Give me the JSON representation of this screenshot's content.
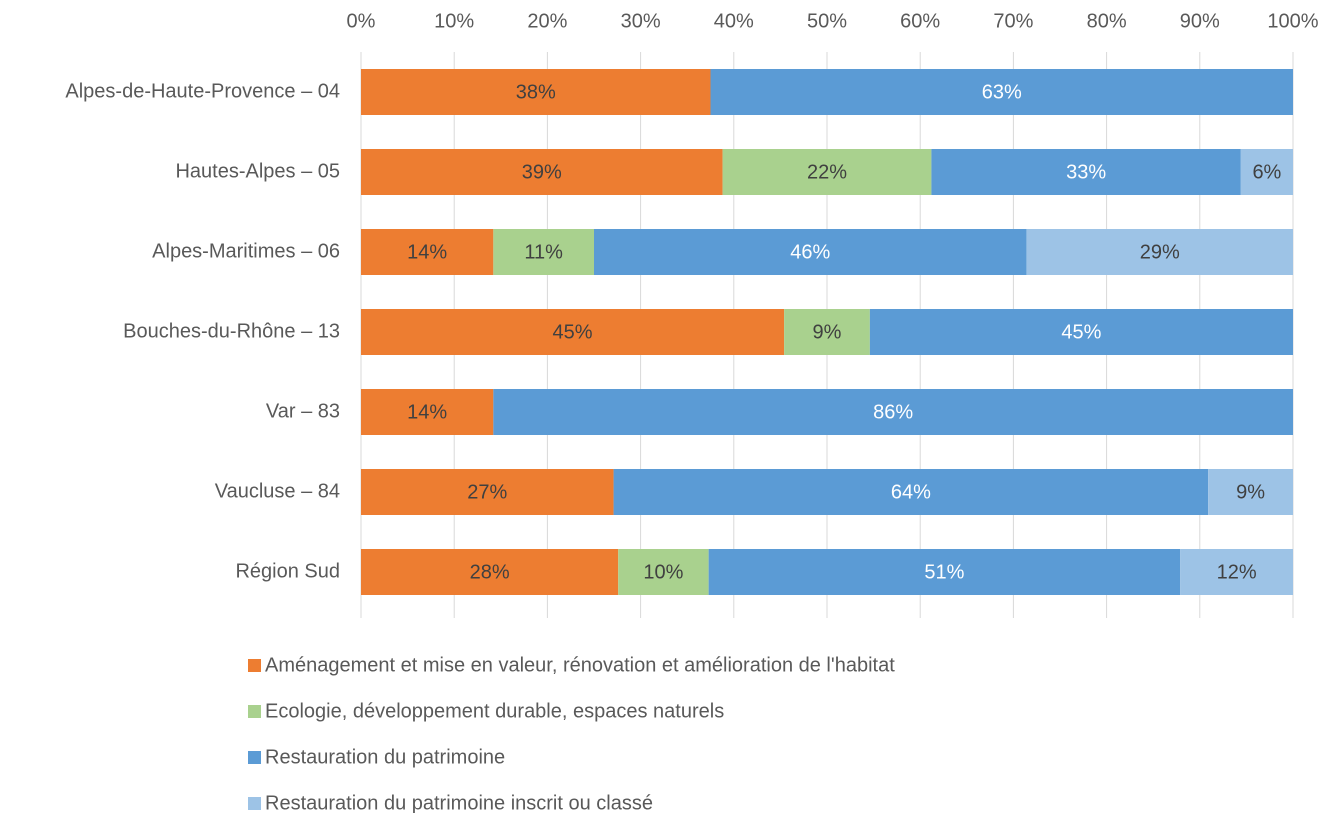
{
  "chart_data": {
    "type": "stacked_barh",
    "categories": [
      "Alpes-de-Haute-Provence – 04",
      "Hautes-Alpes – 05",
      "Alpes-Maritimes – 06",
      "Bouches-du-Rhône – 13",
      "Var – 83",
      "Vaucluse – 84",
      "Région Sud"
    ],
    "series": [
      {
        "name": "Aménagement et mise en valeur, rénovation et amélioration de l'habitat",
        "color": "#ed7d31",
        "label_color": "#404040",
        "values": [
          37.5,
          38.8,
          14.2,
          45.4,
          14.2,
          27.1,
          27.6
        ],
        "value_labels": [
          "38%",
          "39%",
          "14%",
          "45%",
          "14%",
          "27%",
          "28%"
        ]
      },
      {
        "name": "Ecologie, développement durable, espaces naturels",
        "color": "#a9d18e",
        "label_color": "#404040",
        "values": [
          null,
          22.4,
          10.8,
          9.2,
          null,
          null,
          9.7
        ],
        "value_labels": [
          null,
          "22%",
          "11%",
          "9%",
          null,
          null,
          "10%"
        ]
      },
      {
        "name": "Restauration du patrimoine",
        "color": "#5b9bd5",
        "label_color": "#ffffff",
        "values": [
          62.5,
          33.2,
          46.4,
          45.4,
          85.8,
          63.8,
          50.6
        ],
        "value_labels": [
          "63%",
          "33%",
          "46%",
          "45%",
          "86%",
          "64%",
          "51%"
        ]
      },
      {
        "name": "Restauration du patrimoine inscrit ou classé",
        "color": "#9dc3e6",
        "label_color": "#404040",
        "values": [
          null,
          5.6,
          28.6,
          null,
          null,
          9.1,
          12.1
        ],
        "value_labels": [
          null,
          "6%",
          "29%",
          null,
          null,
          "9%",
          "12%"
        ]
      }
    ],
    "xlim": [
      0,
      100
    ],
    "xticks": [
      {
        "value": 0,
        "label": "0%"
      },
      {
        "value": 10,
        "label": "10%"
      },
      {
        "value": 20,
        "label": "20%"
      },
      {
        "value": 30,
        "label": "30%"
      },
      {
        "value": 40,
        "label": "40%"
      },
      {
        "value": 50,
        "label": "50%"
      },
      {
        "value": 60,
        "label": "60%"
      },
      {
        "value": 70,
        "label": "70%"
      },
      {
        "value": 80,
        "label": "80%"
      },
      {
        "value": 90,
        "label": "90%"
      },
      {
        "value": 100,
        "label": "100%"
      }
    ],
    "grid": true,
    "legend": "bottom"
  }
}
